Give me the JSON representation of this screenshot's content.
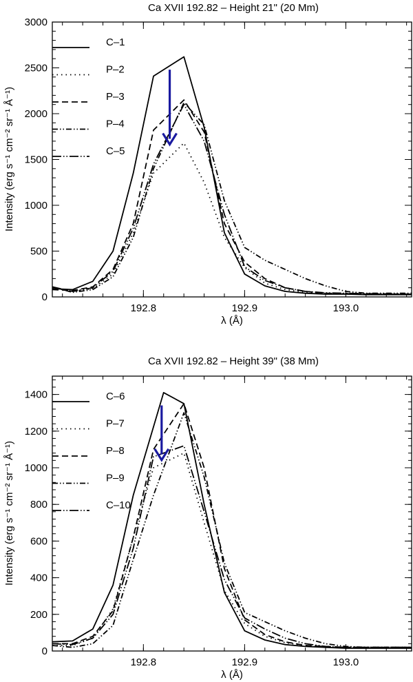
{
  "chart_data": [
    {
      "type": "line",
      "title": "Ca XVII 192.82 – Height 21\" (20 Mm)",
      "xlabel": "λ (Å)",
      "ylabel": "Intensity (erg s⁻¹ cm⁻² sr⁻¹ Å⁻¹)",
      "xlim": [
        192.71,
        193.065
      ],
      "ylim": [
        0,
        3000
      ],
      "xticks": [
        192.8,
        192.9,
        193.0
      ],
      "xtick_labels": [
        "192.8",
        "192.9",
        "193.0"
      ],
      "yticks": [
        0,
        500,
        1000,
        1500,
        2000,
        2500,
        3000
      ],
      "ytick_labels": [
        "0",
        "500",
        "1000",
        "1500",
        "2000",
        "2500",
        "3000"
      ],
      "legend_position": "top-left",
      "arrow": {
        "x": 192.826,
        "y_from": 2480,
        "y_to": 1680,
        "color": "#1a1aa0"
      },
      "series": [
        {
          "name": "C–1",
          "dash": "solid",
          "x": [
            192.71,
            192.73,
            192.75,
            192.77,
            192.79,
            192.81,
            192.84,
            192.86,
            192.88,
            192.9,
            192.92,
            192.94,
            192.96,
            192.98,
            193.0,
            193.02,
            193.065
          ],
          "y": [
            90,
            80,
            170,
            500,
            1350,
            2410,
            2620,
            1850,
            700,
            250,
            120,
            60,
            40,
            30,
            30,
            25,
            25
          ]
        },
        {
          "name": "P–2",
          "dash": "dotted",
          "x": [
            192.71,
            192.73,
            192.75,
            192.77,
            192.79,
            192.81,
            192.84,
            192.86,
            192.88,
            192.9,
            192.92,
            192.94,
            192.96,
            192.98,
            193.0,
            193.02,
            193.065
          ],
          "y": [
            100,
            60,
            90,
            250,
            700,
            1350,
            1680,
            1250,
            650,
            320,
            150,
            80,
            50,
            40,
            35,
            30,
            30
          ]
        },
        {
          "name": "P–3",
          "dash": "dashed",
          "x": [
            192.71,
            192.73,
            192.75,
            192.77,
            192.79,
            192.81,
            192.84,
            192.86,
            192.88,
            192.9,
            192.92,
            192.94,
            192.96,
            192.98,
            193.0,
            193.02,
            193.065
          ],
          "y": [
            80,
            70,
            110,
            300,
            800,
            1820,
            2150,
            1800,
            800,
            380,
            200,
            100,
            60,
            40,
            35,
            30,
            30
          ]
        },
        {
          "name": "P–4",
          "dash": "dashdotdot",
          "x": [
            192.71,
            192.73,
            192.75,
            192.77,
            192.79,
            192.81,
            192.84,
            192.86,
            192.88,
            192.9,
            192.92,
            192.94,
            192.96,
            192.98,
            193.0,
            193.02,
            193.065
          ],
          "y": [
            110,
            50,
            80,
            220,
            650,
            1400,
            2120,
            1880,
            1050,
            540,
            400,
            300,
            200,
            120,
            60,
            40,
            40
          ]
        },
        {
          "name": "C–5",
          "dash": "dashdotdotlong",
          "x": [
            192.71,
            192.73,
            192.75,
            192.77,
            192.79,
            192.81,
            192.84,
            192.86,
            192.88,
            192.9,
            192.92,
            192.94,
            192.96,
            192.98,
            193.0,
            193.02,
            193.065
          ],
          "y": [
            110,
            60,
            100,
            280,
            750,
            1450,
            2100,
            1700,
            900,
            330,
            180,
            100,
            60,
            45,
            40,
            35,
            30
          ]
        }
      ]
    },
    {
      "type": "line",
      "title": "Ca XVII 192.82 – Height 39\" (38 Mm)",
      "xlabel": "λ (Å)",
      "ylabel": "Intensity (erg s⁻¹ cm⁻² sr⁻¹ Å⁻¹)",
      "xlim": [
        192.71,
        193.065
      ],
      "ylim": [
        0,
        1500
      ],
      "xticks": [
        192.8,
        192.9,
        193.0
      ],
      "xtick_labels": [
        "192.8",
        "192.9",
        "193.0"
      ],
      "yticks": [
        0,
        200,
        400,
        600,
        800,
        1000,
        1200,
        1400
      ],
      "ytick_labels": [
        "0",
        "200",
        "400",
        "600",
        "800",
        "1000",
        "1200",
        "1400"
      ],
      "legend_position": "top-left",
      "arrow": {
        "x": 192.818,
        "y_from": 1340,
        "y_to": 1050,
        "color": "#1a1aa0"
      },
      "series": [
        {
          "name": "C–6",
          "dash": "solid",
          "x": [
            192.71,
            192.73,
            192.75,
            192.77,
            192.79,
            192.82,
            192.84,
            192.86,
            192.88,
            192.9,
            192.92,
            192.94,
            192.96,
            192.98,
            193.0,
            193.02,
            193.065
          ],
          "y": [
            50,
            55,
            120,
            360,
            850,
            1410,
            1350,
            800,
            320,
            110,
            60,
            35,
            25,
            20,
            15,
            15,
            15
          ]
        },
        {
          "name": "P–7",
          "dash": "dotted",
          "x": [
            192.71,
            192.73,
            192.75,
            192.77,
            192.79,
            192.81,
            192.84,
            192.86,
            192.88,
            192.9,
            192.92,
            192.94,
            192.96,
            192.98,
            193.0,
            193.02,
            193.065
          ],
          "y": [
            30,
            30,
            70,
            230,
            620,
            1000,
            1080,
            700,
            330,
            150,
            80,
            45,
            30,
            25,
            20,
            20,
            20
          ]
        },
        {
          "name": "P–8",
          "dash": "dashed",
          "x": [
            192.71,
            192.73,
            192.75,
            192.77,
            192.79,
            192.81,
            192.84,
            192.86,
            192.88,
            192.9,
            192.92,
            192.94,
            192.96,
            192.98,
            193.0,
            193.02,
            193.065
          ],
          "y": [
            40,
            40,
            80,
            220,
            620,
            1100,
            1350,
            1000,
            450,
            170,
            90,
            50,
            30,
            25,
            20,
            20,
            20
          ]
        },
        {
          "name": "P–9",
          "dash": "dashdotdot",
          "x": [
            192.71,
            192.73,
            192.75,
            192.77,
            192.79,
            192.81,
            192.84,
            192.86,
            192.88,
            192.9,
            192.92,
            192.94,
            192.96,
            192.98,
            193.0,
            193.02,
            193.065
          ],
          "y": [
            30,
            20,
            40,
            140,
            500,
            850,
            1300,
            950,
            480,
            210,
            160,
            110,
            70,
            40,
            25,
            20,
            20
          ]
        },
        {
          "name": "C–10",
          "dash": "dashdotdotlong",
          "x": [
            192.71,
            192.73,
            192.75,
            192.77,
            192.79,
            192.81,
            192.84,
            192.86,
            192.88,
            192.9,
            192.92,
            192.94,
            192.96,
            192.98,
            193.0,
            193.02,
            193.065
          ],
          "y": [
            40,
            35,
            70,
            200,
            560,
            1060,
            1120,
            760,
            390,
            180,
            120,
            70,
            40,
            25,
            20,
            20,
            20
          ]
        }
      ]
    }
  ]
}
